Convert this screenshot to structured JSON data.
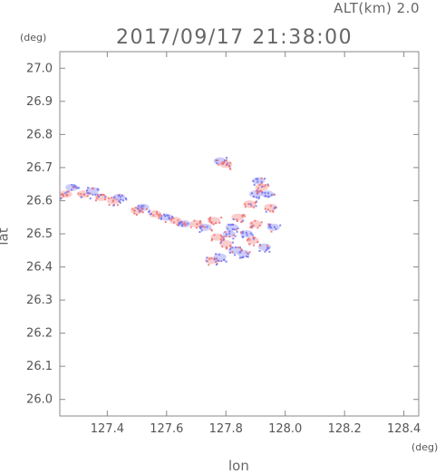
{
  "header": {
    "alt_label": "ALT(km)  2.0",
    "datetime": "2017/09/17 21:38:00"
  },
  "chart_data": {
    "type": "scatter",
    "xlabel": "lon",
    "ylabel": "lat",
    "x_unit": "(deg)",
    "y_unit": "(deg)",
    "xlim": [
      127.24,
      128.45
    ],
    "ylim": [
      25.95,
      27.05
    ],
    "xticks": [
      127.4,
      127.6,
      127.8,
      128.0,
      128.2,
      128.4
    ],
    "xtick_labels": [
      "127.4",
      "127.6",
      "127.8",
      "128.0",
      "128.2",
      "128.4"
    ],
    "yticks": [
      26.0,
      26.1,
      26.2,
      26.3,
      26.4,
      26.5,
      26.6,
      26.7,
      26.8,
      26.9,
      27.0
    ],
    "ytick_labels": [
      "26.0",
      "26.1",
      "26.2",
      "26.3",
      "26.4",
      "26.5",
      "26.6",
      "26.7",
      "26.8",
      "26.9",
      "27.0"
    ],
    "grid": false,
    "colors": {
      "positive": "#f07070",
      "negative": "#7070f0",
      "axis": "#888888"
    },
    "clusters": [
      {
        "lon": 127.26,
        "lat": 26.62,
        "sign": "positive"
      },
      {
        "lon": 127.28,
        "lat": 26.64,
        "sign": "negative"
      },
      {
        "lon": 127.32,
        "lat": 26.62,
        "sign": "positive"
      },
      {
        "lon": 127.35,
        "lat": 26.63,
        "sign": "negative"
      },
      {
        "lon": 127.38,
        "lat": 26.61,
        "sign": "positive"
      },
      {
        "lon": 127.42,
        "lat": 26.6,
        "sign": "positive"
      },
      {
        "lon": 127.44,
        "lat": 26.61,
        "sign": "negative"
      },
      {
        "lon": 127.5,
        "lat": 26.57,
        "sign": "positive"
      },
      {
        "lon": 127.52,
        "lat": 26.58,
        "sign": "negative"
      },
      {
        "lon": 127.56,
        "lat": 26.56,
        "sign": "positive"
      },
      {
        "lon": 127.6,
        "lat": 26.55,
        "sign": "negative"
      },
      {
        "lon": 127.63,
        "lat": 26.54,
        "sign": "positive"
      },
      {
        "lon": 127.66,
        "lat": 26.53,
        "sign": "negative"
      },
      {
        "lon": 127.7,
        "lat": 26.53,
        "sign": "positive"
      },
      {
        "lon": 127.73,
        "lat": 26.52,
        "sign": "negative"
      },
      {
        "lon": 127.76,
        "lat": 26.54,
        "sign": "positive"
      },
      {
        "lon": 127.78,
        "lat": 26.72,
        "sign": "negative"
      },
      {
        "lon": 127.8,
        "lat": 26.71,
        "sign": "positive"
      },
      {
        "lon": 127.82,
        "lat": 26.52,
        "sign": "negative"
      },
      {
        "lon": 127.84,
        "lat": 26.55,
        "sign": "positive"
      },
      {
        "lon": 127.87,
        "lat": 26.5,
        "sign": "negative"
      },
      {
        "lon": 127.88,
        "lat": 26.59,
        "sign": "positive"
      },
      {
        "lon": 127.9,
        "lat": 26.62,
        "sign": "negative"
      },
      {
        "lon": 127.92,
        "lat": 26.64,
        "sign": "positive"
      },
      {
        "lon": 127.94,
        "lat": 26.62,
        "sign": "negative"
      },
      {
        "lon": 127.91,
        "lat": 26.66,
        "sign": "negative"
      },
      {
        "lon": 127.95,
        "lat": 26.58,
        "sign": "positive"
      },
      {
        "lon": 127.8,
        "lat": 26.47,
        "sign": "positive"
      },
      {
        "lon": 127.83,
        "lat": 26.45,
        "sign": "negative"
      },
      {
        "lon": 127.78,
        "lat": 26.43,
        "sign": "negative"
      },
      {
        "lon": 127.75,
        "lat": 26.42,
        "sign": "positive"
      },
      {
        "lon": 127.86,
        "lat": 26.44,
        "sign": "negative"
      },
      {
        "lon": 127.89,
        "lat": 26.48,
        "sign": "positive"
      },
      {
        "lon": 127.93,
        "lat": 26.46,
        "sign": "negative"
      },
      {
        "lon": 127.81,
        "lat": 26.5,
        "sign": "negative"
      },
      {
        "lon": 127.77,
        "lat": 26.49,
        "sign": "positive"
      },
      {
        "lon": 127.9,
        "lat": 26.53,
        "sign": "positive"
      },
      {
        "lon": 127.96,
        "lat": 26.52,
        "sign": "negative"
      }
    ]
  }
}
